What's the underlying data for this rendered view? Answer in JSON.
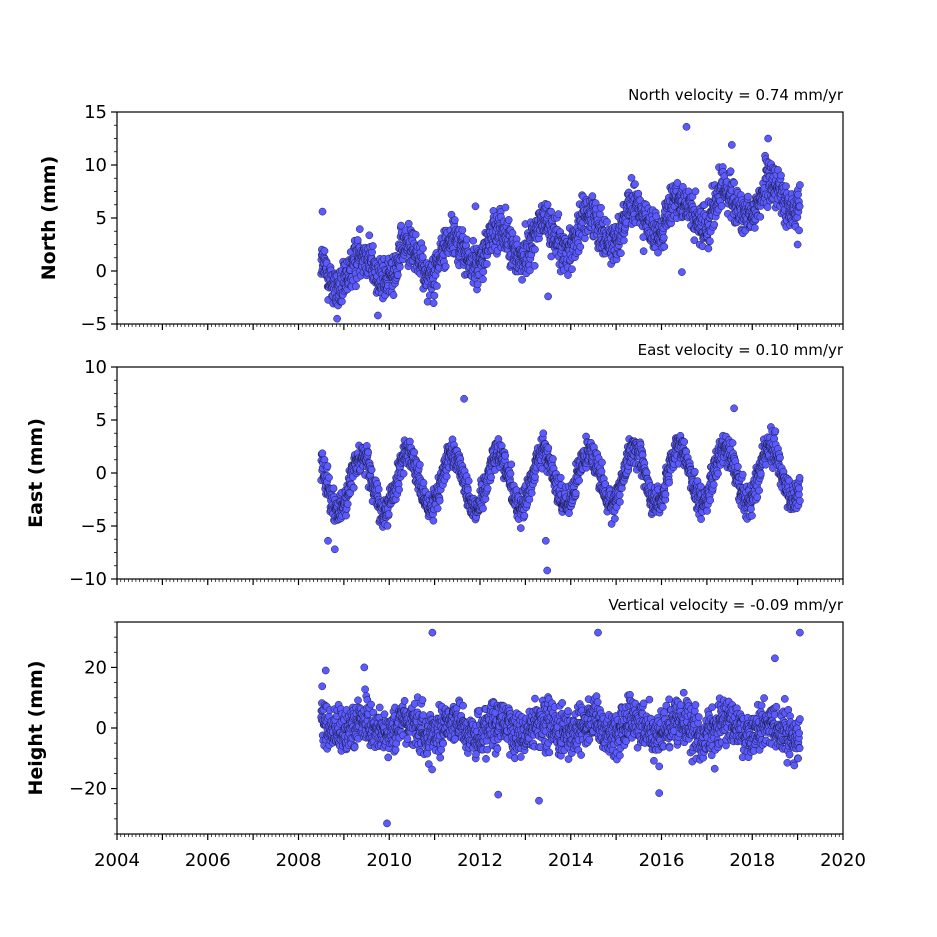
{
  "chart_data": [
    {
      "type": "scatter",
      "title": "North velocity = 0.74 mm/yr",
      "ylabel": "North (mm)",
      "xlim": [
        2004,
        2020
      ],
      "ylim": [
        -5,
        15
      ],
      "yticks": [
        -5,
        0,
        5,
        10,
        15
      ],
      "yticklabels": [
        "−5",
        "0",
        "5",
        "10",
        "15"
      ],
      "marker_color": "#5a5aff",
      "series": [
        {
          "start": 2008.5,
          "end": 2019.05,
          "trend_start": -0.5,
          "velocity": 0.74,
          "seasonal_amp": 1.6,
          "noise": 1.4,
          "x": [
            2008.53,
            2008.85,
            2009.75,
            2011.9,
            2013.5,
            2016.55,
            2016.45,
            2018.35,
            2017.55,
            2019.0
          ],
          "y": [
            5.6,
            -4.5,
            -4.2,
            6.1,
            -2.4,
            13.6,
            -0.1,
            12.5,
            11.9,
            2.5
          ]
        }
      ]
    },
    {
      "type": "scatter",
      "title": "East velocity = 0.10 mm/yr",
      "ylabel": "East (mm)",
      "xlim": [
        2004,
        2020
      ],
      "ylim": [
        -10,
        10
      ],
      "yticks": [
        -10,
        -5,
        0,
        5,
        10
      ],
      "yticklabels": [
        "−10",
        "−5",
        "0",
        "5",
        "10"
      ],
      "marker_color": "#5a5aff",
      "series": [
        {
          "start": 2008.5,
          "end": 2019.05,
          "trend_start": -1.0,
          "velocity": 0.1,
          "seasonal_amp": 2.6,
          "noise": 1.0,
          "x": [
            2011.65,
            2013.48,
            2013.45,
            2017.6,
            2008.65,
            2008.8,
            2012.9
          ],
          "y": [
            7.0,
            -9.2,
            -6.4,
            6.1,
            -6.4,
            -7.2,
            -5.2
          ]
        }
      ]
    },
    {
      "type": "scatter",
      "title": "Vertical velocity = -0.09 mm/yr",
      "ylabel": "Height (mm)",
      "xlim": [
        2004,
        2020
      ],
      "ylim": [
        -35,
        35
      ],
      "yticks": [
        -20,
        0,
        20
      ],
      "yticklabels": [
        "−20",
        "0",
        "20"
      ],
      "marker_color": "#5a5aff",
      "series": [
        {
          "start": 2008.5,
          "end": 2019.05,
          "trend_start": 0.5,
          "velocity": -0.09,
          "seasonal_amp": 2.5,
          "noise": 5.5,
          "x": [
            2010.95,
            2014.6,
            2019.05,
            2009.95,
            2012.4,
            2013.3,
            2015.95,
            2008.6,
            2009.45,
            2018.5
          ],
          "y": [
            31.5,
            31.5,
            31.5,
            -31.5,
            -22,
            -24,
            -21.5,
            19,
            20,
            23
          ]
        }
      ]
    }
  ],
  "x_axis": {
    "ticks": [
      2004,
      2006,
      2008,
      2010,
      2012,
      2014,
      2016,
      2018,
      2020
    ],
    "ticklabels": [
      "2004",
      "2006",
      "2008",
      "2010",
      "2012",
      "2014",
      "2016",
      "2018",
      "2020"
    ]
  }
}
